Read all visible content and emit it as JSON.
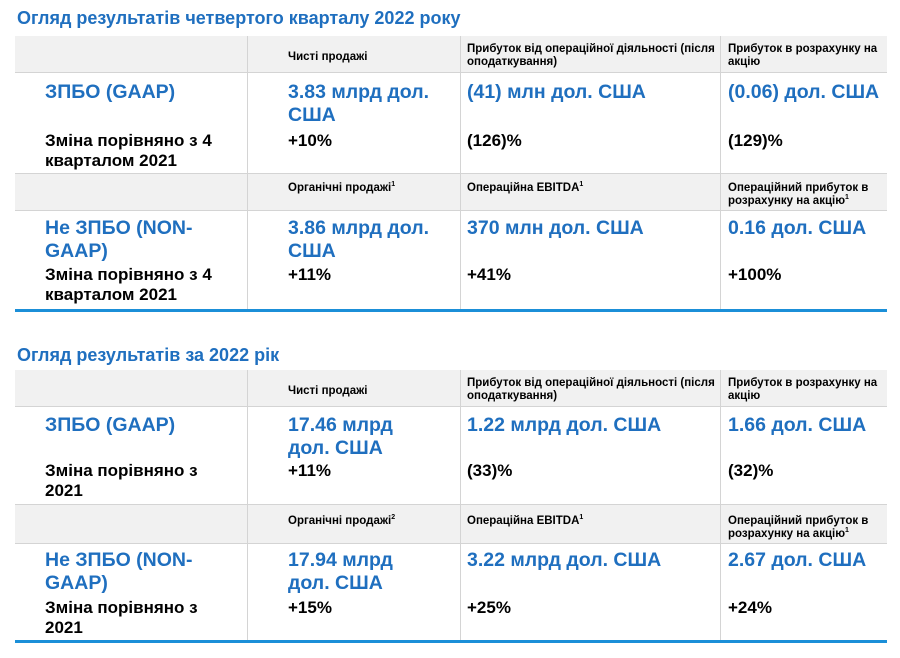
{
  "q4": {
    "title": "Огляд результатів четвертого кварталу 2022 року",
    "gaap_header": {
      "col1": "Чисті продажі",
      "col2": "Прибуток від операційної діяльності (після оподаткування)",
      "col3": "Прибуток в розрахунку на акцію"
    },
    "gaap": {
      "label": "ЗПБО (GAAP)",
      "change_label": "Зміна порівняно з 4 кварталом 2021",
      "col1_value": "3.83 млрд дол. США",
      "col1_change": "+10%",
      "col2_value": "(41) млн дол. США",
      "col2_change": "(126)%",
      "col3_value": "(0.06) дол. США",
      "col3_change": "(129)%"
    },
    "nongaap_header": {
      "col1": "Органічні продажі",
      "col1_sup": "1",
      "col2": "Операційна EBITDA",
      "col2_sup": "1",
      "col3": "Операційний прибуток в розрахунку на акцію",
      "col3_sup": "1"
    },
    "nongaap": {
      "label": "Не ЗПБО (NON-GAAP)",
      "change_label": "Зміна порівняно з 4 кварталом 2021",
      "col1_value": "3.86 млрд дол. США",
      "col1_change": "+11%",
      "col2_value": "370 млн дол. США",
      "col2_change": "+41%",
      "col3_value": "0.16 дол. США",
      "col3_change": "+100%"
    }
  },
  "fy": {
    "title": "Огляд результатів за 2022 рік",
    "gaap_header": {
      "col1": "Чисті продажі",
      "col2": "Прибуток від операційної діяльності (після оподаткування)",
      "col3": "Прибуток в розрахунку на акцію"
    },
    "gaap": {
      "label": "ЗПБО (GAAP)",
      "change_label": "Зміна порівняно з 2021",
      "col1_value": "17.46 млрд дол. США",
      "col1_change": "+11%",
      "col2_value": "1.22 млрд дол. США",
      "col2_change": "(33)%",
      "col3_value": "1.66 дол. США",
      "col3_change": "(32)%"
    },
    "nongaap_header": {
      "col1": "Органічні продажі",
      "col1_sup": "2",
      "col2": "Операційна EBITDA",
      "col2_sup": "1",
      "col3": "Операційний прибуток в розрахунку на акцію",
      "col3_sup": "1"
    },
    "nongaap": {
      "label": "Не ЗПБО (NON-GAAP)",
      "change_label": "Зміна порівняно з 2021",
      "col1_value": "17.94 млрд дол. США",
      "col1_change": "+15%",
      "col2_value": "3.22 млрд дол. США",
      "col2_change": "+25%",
      "col3_value": "2.67 дол. США",
      "col3_change": "+24%"
    }
  },
  "colors": {
    "accent": "#1f6fbf",
    "rule": "#1b8fd8",
    "header_bg": "#f1f1f1"
  }
}
